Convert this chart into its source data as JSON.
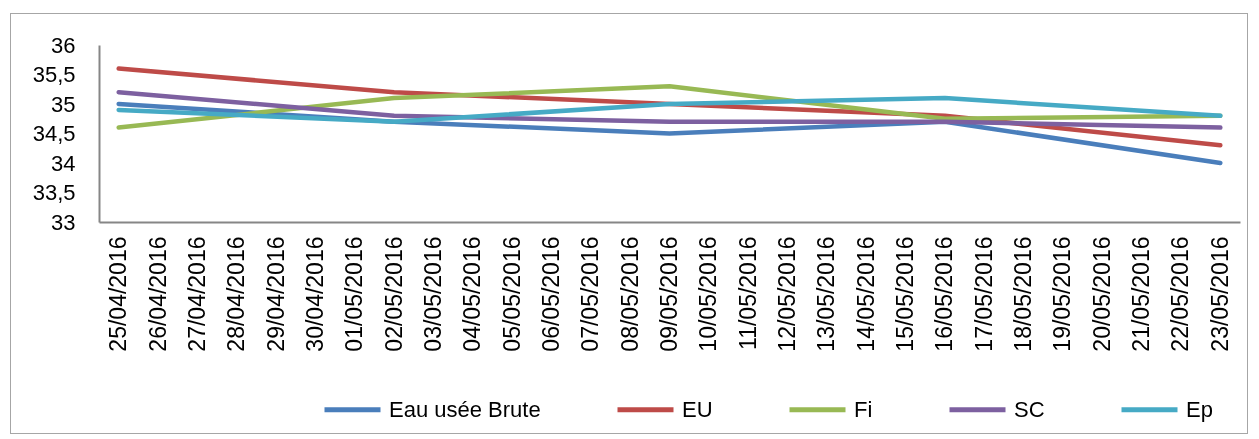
{
  "chart_data": {
    "type": "line",
    "x": [
      "2016-04-25",
      "2016-05-02",
      "2016-05-09",
      "2016-05-16",
      "2016-05-23"
    ],
    "xlim": [
      "2016-04-24T12:00",
      "2016-05-23T12:00"
    ],
    "xticks": [
      {
        "value": "2016-04-25",
        "label": "25/04/2016"
      },
      {
        "value": "2016-04-26",
        "label": "26/04/2016"
      },
      {
        "value": "2016-04-27",
        "label": "27/04/2016"
      },
      {
        "value": "2016-04-28",
        "label": "28/04/2016"
      },
      {
        "value": "2016-04-29",
        "label": "29/04/2016"
      },
      {
        "value": "2016-04-30",
        "label": "30/04/2016"
      },
      {
        "value": "2016-05-01",
        "label": "01/05/2016"
      },
      {
        "value": "2016-05-02",
        "label": "02/05/2016"
      },
      {
        "value": "2016-05-03",
        "label": "03/05/2016"
      },
      {
        "value": "2016-05-04",
        "label": "04/05/2016"
      },
      {
        "value": "2016-05-05",
        "label": "05/05/2016"
      },
      {
        "value": "2016-05-06",
        "label": "06/05/2016"
      },
      {
        "value": "2016-05-07",
        "label": "07/05/2016"
      },
      {
        "value": "2016-05-08",
        "label": "08/05/2016"
      },
      {
        "value": "2016-05-09",
        "label": "09/05/2016"
      },
      {
        "value": "2016-05-10",
        "label": "10/05/2016"
      },
      {
        "value": "2016-05-11",
        "label": "11/05/2016"
      },
      {
        "value": "2016-05-12",
        "label": "12/05/2016"
      },
      {
        "value": "2016-05-13",
        "label": "13/05/2016"
      },
      {
        "value": "2016-05-14",
        "label": "14/05/2016"
      },
      {
        "value": "2016-05-15",
        "label": "15/05/2016"
      },
      {
        "value": "2016-05-16",
        "label": "16/05/2016"
      },
      {
        "value": "2016-05-17",
        "label": "17/05/2016"
      },
      {
        "value": "2016-05-18",
        "label": "18/05/2016"
      },
      {
        "value": "2016-05-19",
        "label": "19/05/2016"
      },
      {
        "value": "2016-05-20",
        "label": "20/05/2016"
      },
      {
        "value": "2016-05-21",
        "label": "21/05/2016"
      },
      {
        "value": "2016-05-22",
        "label": "22/05/2016"
      },
      {
        "value": "2016-05-23",
        "label": "23/05/2016"
      }
    ],
    "ylim": [
      33,
      36
    ],
    "yticks": [
      33,
      {
        "value": 33.5,
        "label": "33,5"
      },
      34,
      {
        "value": 34.5,
        "label": "34,5"
      },
      35,
      {
        "value": 35.5,
        "label": "35,5"
      },
      36
    ],
    "series": [
      {
        "name": "Eau usée Brute",
        "color": "#4a7ebb",
        "values": [
          35.0,
          34.7,
          34.5,
          34.7,
          34.0
        ]
      },
      {
        "name": "EU",
        "color": "#be4b48",
        "values": [
          35.6,
          35.2,
          35.0,
          34.8,
          34.3
        ]
      },
      {
        "name": "Fi",
        "color": "#98b954",
        "values": [
          34.6,
          35.1,
          35.3,
          34.75,
          34.8
        ]
      },
      {
        "name": "SC",
        "color": "#7d60a0",
        "values": [
          35.2,
          34.8,
          34.7,
          34.7,
          34.6
        ]
      },
      {
        "name": "Ep",
        "color": "#46aac5",
        "values": [
          34.9,
          34.7,
          35.0,
          35.1,
          34.8
        ]
      }
    ],
    "legend": "bottom"
  }
}
